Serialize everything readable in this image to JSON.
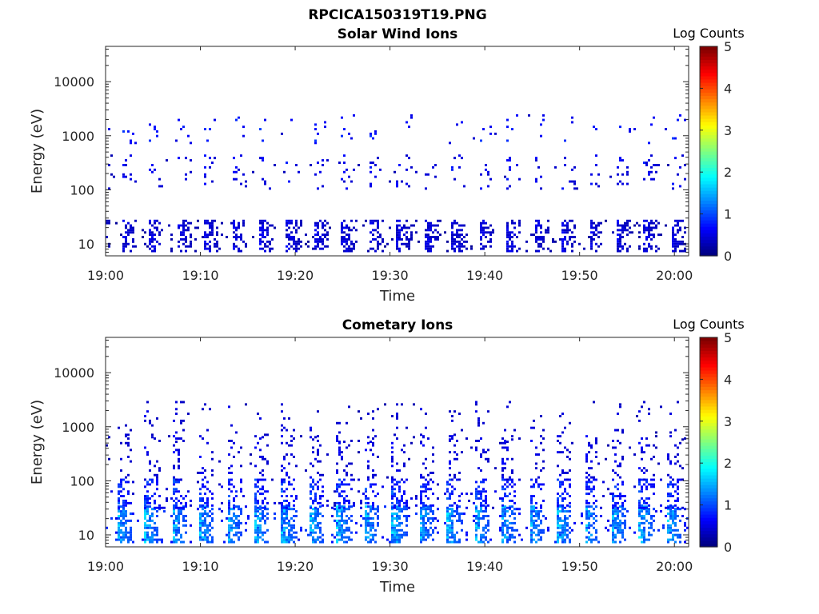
{
  "figure_title": "RPCICA150319T19.PNG",
  "colors": {
    "axis": "#262626",
    "background": "#ffffff"
  },
  "chart_data": [
    {
      "type": "heatmap",
      "title": "Solar Wind Ions",
      "xlabel": "Time",
      "ylabel": "Energy (eV)",
      "y_scale": "log",
      "ylim": [
        6,
        45000
      ],
      "x_range_minutes": [
        0,
        61.5
      ],
      "x_ticks": [
        "19:00",
        "19:10",
        "19:20",
        "19:30",
        "19:40",
        "19:50",
        "20:00"
      ],
      "y_ticks": [
        "10",
        "100",
        "1000",
        "10000"
      ],
      "colorbar": {
        "label": "Log Counts",
        "ticks": [
          "0",
          "1",
          "2",
          "3",
          "4",
          "5"
        ],
        "range": [
          0,
          5
        ],
        "colormap": "jet"
      },
      "scan_period_minutes": 2.9,
      "scan_offset_minutes": 1.7,
      "bands": [
        {
          "e_min": 7,
          "e_max": 28,
          "level_min": 0.1,
          "level_max": 0.7,
          "density": 0.55
        },
        {
          "e_min": 100,
          "e_max": 450,
          "level_min": 0.2,
          "level_max": 0.8,
          "density": 0.12
        },
        {
          "e_min": 700,
          "e_max": 2500,
          "level_min": 0.3,
          "level_max": 1.0,
          "density": 0.05
        }
      ]
    },
    {
      "type": "heatmap",
      "title": "Cometary Ions",
      "xlabel": "Time",
      "ylabel": "Energy (eV)",
      "y_scale": "log",
      "ylim": [
        6,
        45000
      ],
      "x_range_minutes": [
        0,
        61.5
      ],
      "x_ticks": [
        "19:00",
        "19:10",
        "19:20",
        "19:30",
        "19:40",
        "19:50",
        "20:00"
      ],
      "y_ticks": [
        "10",
        "100",
        "1000",
        "10000"
      ],
      "colorbar": {
        "label": "Log Counts",
        "ticks": [
          "0",
          "1",
          "2",
          "3",
          "4",
          "5"
        ],
        "range": [
          0,
          5
        ],
        "colormap": "jet"
      },
      "scan_period_minutes": 2.9,
      "scan_offset_minutes": 1.2,
      "bands": [
        {
          "e_min": 7,
          "e_max": 35,
          "level_min": 0.5,
          "level_max": 1.9,
          "density": 0.7
        },
        {
          "e_min": 30,
          "e_max": 110,
          "level_min": 0.3,
          "level_max": 1.2,
          "density": 0.45
        },
        {
          "e_min": 100,
          "e_max": 700,
          "level_min": 0.2,
          "level_max": 0.7,
          "density": 0.18
        },
        {
          "e_min": 500,
          "e_max": 3000,
          "level_min": 0.2,
          "level_max": 0.6,
          "density": 0.06
        }
      ]
    }
  ]
}
